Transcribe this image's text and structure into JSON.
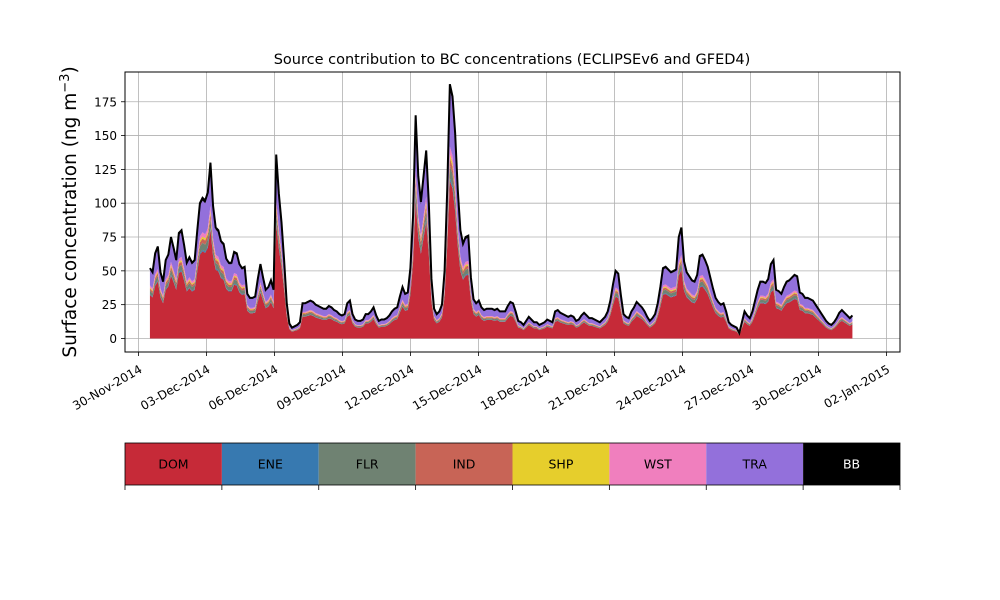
{
  "chart_data": {
    "type": "area",
    "title": "Source contribution to BC concentrations (ECLIPSEv6 and GFED4)",
    "ylabel_main": "Surface concentration (ng m",
    "ylabel_sup": "−3",
    "ylabel_close": ")",
    "xlabel": "",
    "grid": true,
    "stacked": true,
    "ylim": [
      -10,
      197
    ],
    "yticks": [
      0,
      25,
      50,
      75,
      100,
      125,
      150,
      175
    ],
    "xlim_days": [
      -0.6,
      33.6
    ],
    "xtick_labels": [
      "30-Nov-2014",
      "03-Dec-2014",
      "06-Dec-2014",
      "09-Dec-2014",
      "12-Dec-2014",
      "15-Dec-2014",
      "18-Dec-2014",
      "21-Dec-2014",
      "24-Dec-2014",
      "27-Dec-2014",
      "30-Dec-2014",
      "02-Jan-2015"
    ],
    "xtick_days": [
      0,
      3,
      6,
      9,
      12,
      15,
      18,
      21,
      24,
      27,
      30,
      33
    ],
    "x_start_date": "01-Dec-2014",
    "x_end_date": "01-Jan-2015",
    "total": [
      52,
      49,
      63,
      68,
      49,
      42,
      58,
      62,
      75,
      67,
      58,
      78,
      80,
      69,
      56,
      60,
      56,
      58,
      80,
      100,
      104,
      102,
      108,
      130,
      98,
      82,
      80,
      72,
      70,
      59,
      56,
      56,
      64,
      63,
      55,
      52,
      53,
      33,
      30,
      30,
      31,
      44,
      55,
      45,
      36,
      38,
      43,
      36,
      136,
      107,
      86,
      58,
      26,
      11,
      8,
      9,
      10,
      12,
      26,
      26,
      27,
      28,
      27,
      25,
      24,
      23,
      22,
      22,
      24,
      23,
      21,
      20,
      18,
      17,
      18,
      26,
      28,
      18,
      14,
      13,
      13,
      14,
      18,
      18,
      20,
      23,
      17,
      13,
      14,
      14,
      15,
      17,
      20,
      22,
      23,
      31,
      38,
      33,
      34,
      52,
      90,
      165,
      120,
      101,
      120,
      139,
      100,
      44,
      22,
      18,
      20,
      25,
      50,
      110,
      188,
      179,
      152,
      110,
      80,
      70,
      75,
      76,
      45,
      29,
      26,
      28,
      23,
      21,
      22,
      22,
      22,
      21,
      22,
      20,
      20,
      20,
      24,
      27,
      26,
      20,
      13,
      12,
      10,
      13,
      16,
      14,
      12,
      12,
      10,
      11,
      12,
      14,
      13,
      12,
      20,
      21,
      19,
      18,
      17,
      16,
      17,
      16,
      13,
      14,
      17,
      19,
      17,
      15,
      15,
      14,
      13,
      12,
      14,
      16,
      20,
      28,
      40,
      50,
      48,
      32,
      18,
      16,
      15,
      20,
      23,
      27,
      25,
      23,
      20,
      16,
      13,
      15,
      18,
      26,
      38,
      52,
      53,
      51,
      49,
      50,
      51,
      75,
      82,
      57,
      49,
      46,
      43,
      42,
      47,
      61,
      62,
      58,
      53,
      45,
      37,
      30,
      27,
      25,
      26,
      20,
      12,
      10,
      9,
      8,
      4,
      12,
      20,
      17,
      15,
      20,
      28,
      36,
      42,
      42,
      41,
      44,
      55,
      58,
      36,
      35,
      33,
      38,
      42,
      43,
      45,
      47,
      46,
      34,
      33,
      30,
      30,
      29,
      28,
      25,
      22,
      19,
      16,
      13,
      11,
      10,
      12,
      15,
      19,
      21,
      19,
      17,
      15,
      17
    ],
    "series": [
      {
        "name": "DOM",
        "color": "#c62a38",
        "share": 0.62
      },
      {
        "name": "ENE",
        "color": "#3779b0",
        "share": 0.01
      },
      {
        "name": "FLR",
        "color": "#6f8272",
        "share": 0.05
      },
      {
        "name": "IND",
        "color": "#c86456",
        "share": 0.03
      },
      {
        "name": "SHP",
        "color": "#e6ce2c",
        "share": 0.015
      },
      {
        "name": "WST",
        "color": "#f07fbe",
        "share": 0.03
      },
      {
        "name": "TRA",
        "color": "#9370db",
        "share": 0.225
      },
      {
        "name": "BB",
        "color": "#000000",
        "share": 0.02
      }
    ]
  },
  "legend_labels": [
    "DOM",
    "ENE",
    "FLR",
    "IND",
    "SHP",
    "WST",
    "TRA",
    "BB"
  ]
}
